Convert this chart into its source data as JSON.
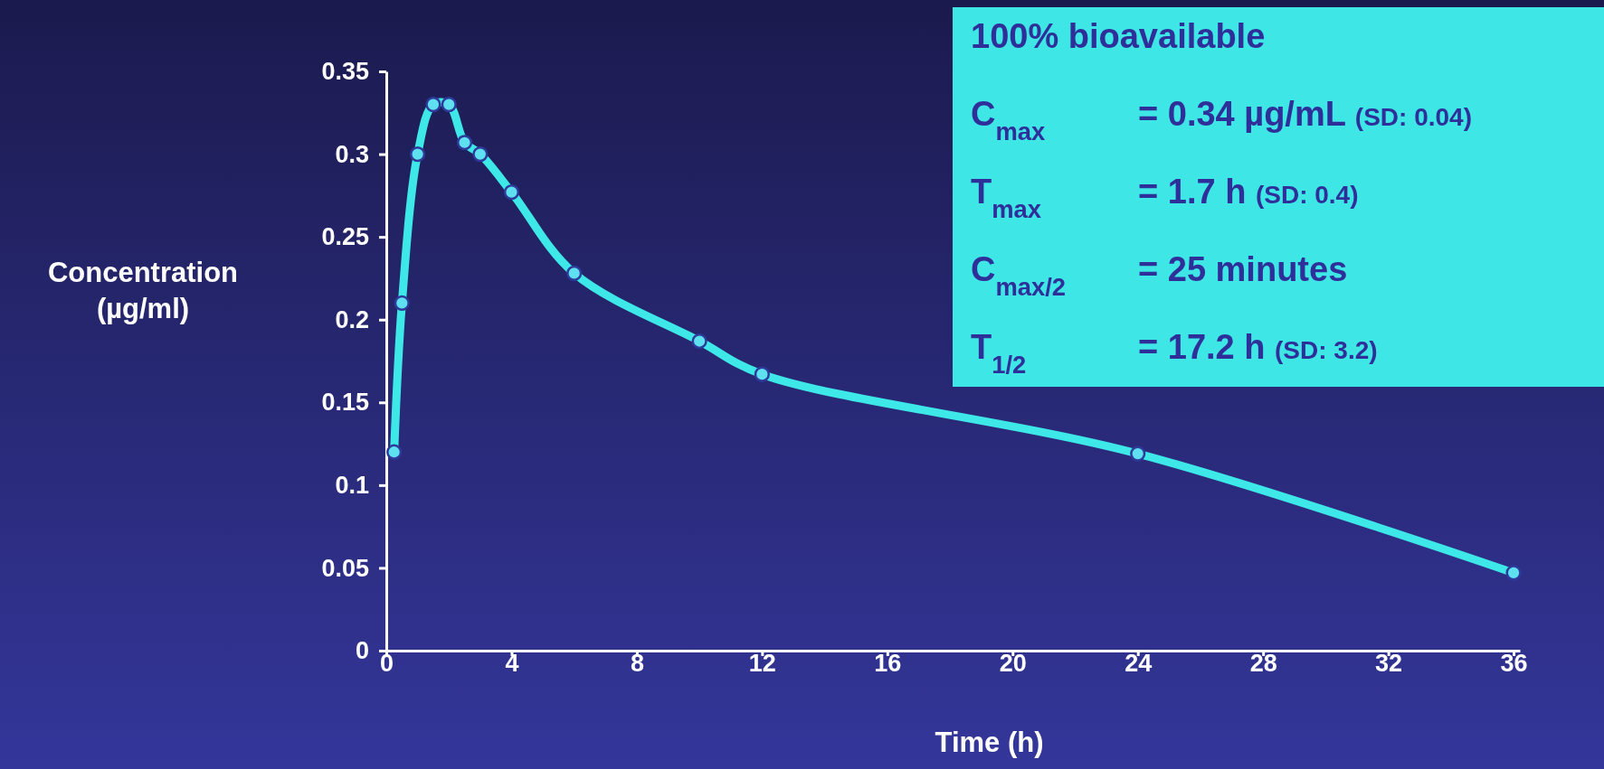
{
  "chart_data": {
    "type": "line",
    "xlabel": "Time (h)",
    "ylabel": "Concentration (µg/ml)",
    "x": [
      0.25,
      0.5,
      1,
      1.5,
      2,
      2.5,
      3,
      4,
      6,
      10,
      12,
      24,
      36
    ],
    "series": [
      {
        "color": "#3ee8e8",
        "values": [
          0.12,
          0.21,
          0.3,
          0.33,
          0.33,
          0.307,
          0.3,
          0.277,
          0.228,
          0.187,
          0.167,
          0.119,
          0.047
        ]
      }
    ],
    "xlim": [
      0,
      36.2
    ],
    "xticks": [
      0,
      4,
      8,
      12,
      16,
      20,
      24,
      28,
      32,
      36
    ],
    "ylim": [
      0,
      0.35
    ],
    "yticks": [
      0,
      0.05,
      0.1,
      0.15,
      0.2,
      0.25,
      0.3,
      0.35
    ],
    "grid": false,
    "marker": "circle",
    "line_style": "solid",
    "annotations": [
      "100% bioavailable",
      "C$_{max}$ = 0.34 µg/mL (SD: 0.04)",
      "T$_{max}$ = 1.7 h (SD: 0.4)",
      "C$_{max/2}$ = 25 minutes",
      "T$_{1/2}$ = 17.2 h (SD: 3.2)"
    ]
  }
}
